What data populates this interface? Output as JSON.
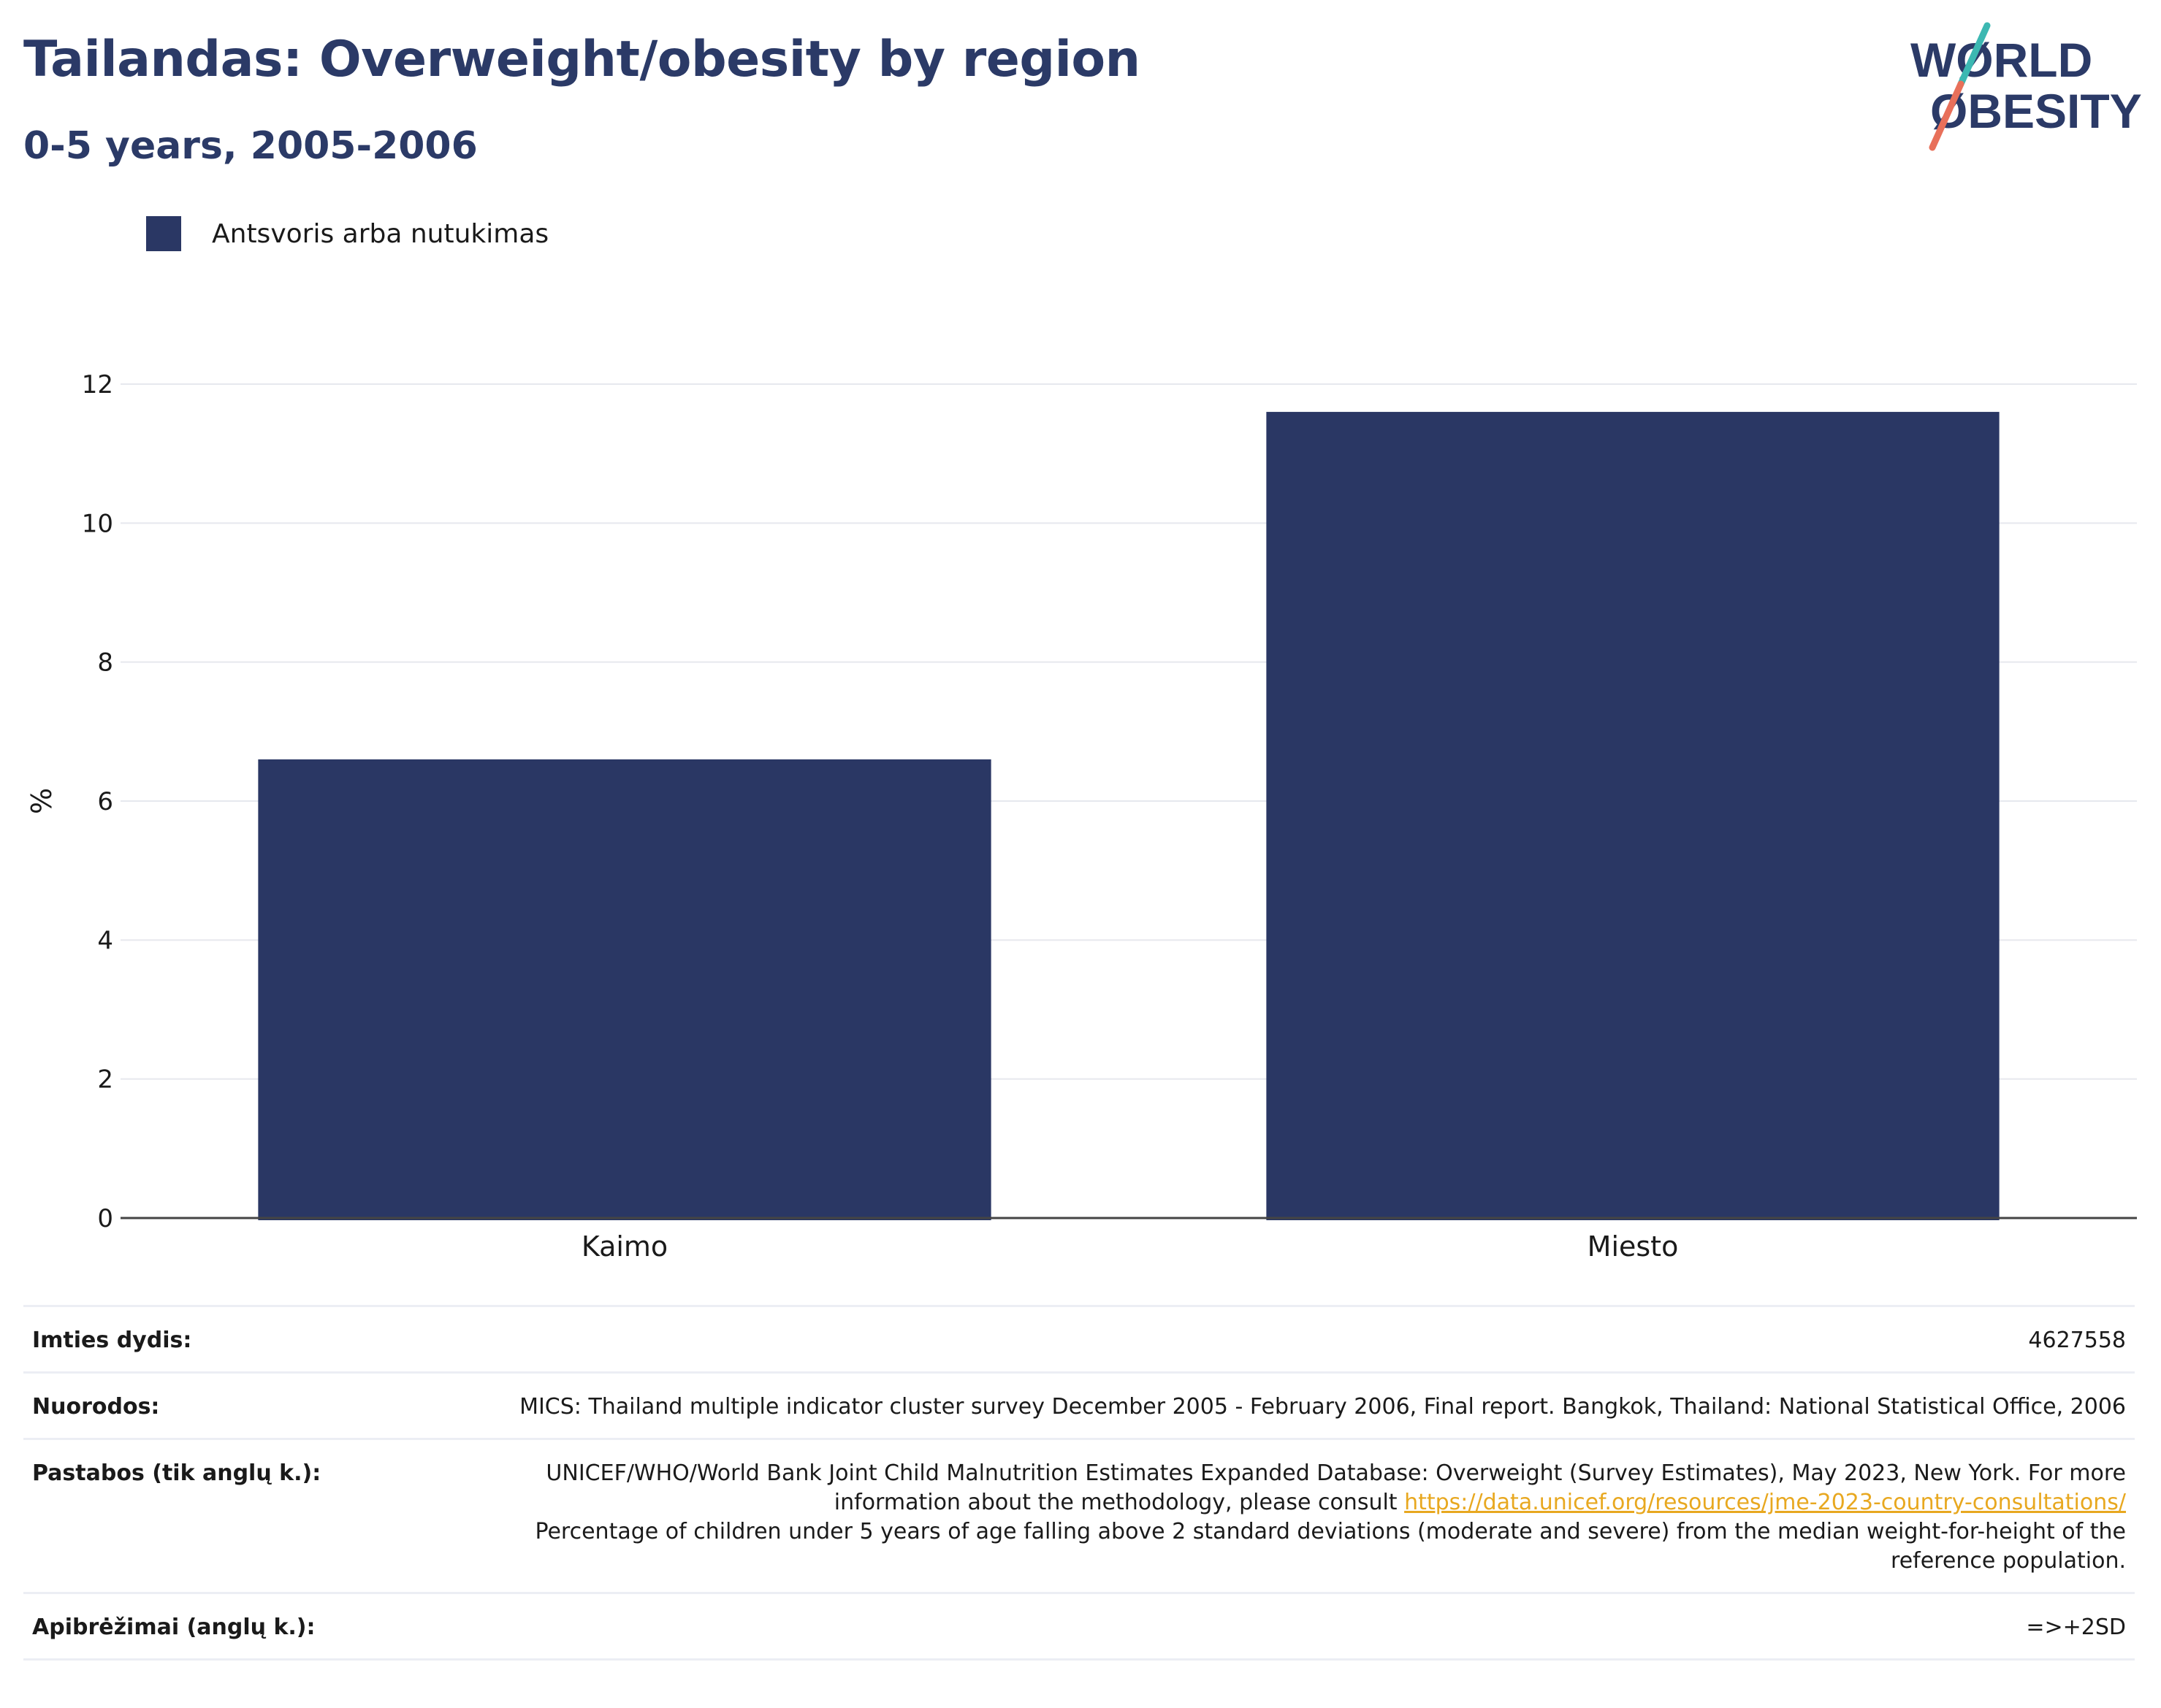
{
  "header": {
    "title": "Tailandas: Overweight/obesity by region",
    "subtitle": "0-5 years, 2005-2006"
  },
  "logo": {
    "line1": "WØRLD",
    "line2": "ØBESITY",
    "colors": {
      "text": "#2b3a67",
      "slash_top": "#3cb8b2",
      "slash_bottom": "#e8705a"
    }
  },
  "legend": {
    "label": "Antsvoris arba nutukimas",
    "color": "#2a3764"
  },
  "chart_data": {
    "type": "bar",
    "categories": [
      "Kaimo",
      "Miesto"
    ],
    "series": [
      {
        "name": "Antsvoris arba nutukimas",
        "values": [
          6.6,
          11.6
        ]
      }
    ],
    "ylabel": "%",
    "ylim": [
      0,
      12
    ],
    "yticks": [
      0,
      2,
      4,
      6,
      8,
      10,
      12
    ],
    "grid": true,
    "legend_position": "top-left",
    "bar_color": "#2a3764"
  },
  "info": {
    "sample_size": {
      "label": "Imties dydis:",
      "value": "4627558"
    },
    "references": {
      "label": "Nuorodos:",
      "value": "MICS: Thailand multiple indicator cluster survey December 2005 - February 2006, Final report. Bangkok, Thailand: National Statistical Office, 2006"
    },
    "notes": {
      "label": "Pastabos (tik anglų k.):",
      "text1": "UNICEF/WHO/World Bank Joint Child Malnutrition Estimates Expanded Database: Overweight (Survey Estimates), May 2023, New York. For more information about the methodology, please consult ",
      "link": "https://data.unicef.org/resources/jme-2023-country-consultations/",
      "text2": "Percentage of children under 5 years of age falling above 2 standard deviations (moderate and severe) from the median weight-for-height of the reference population."
    },
    "definitions": {
      "label": "Apibrėžimai (anglų k.):",
      "value": "=>+2SD"
    }
  }
}
